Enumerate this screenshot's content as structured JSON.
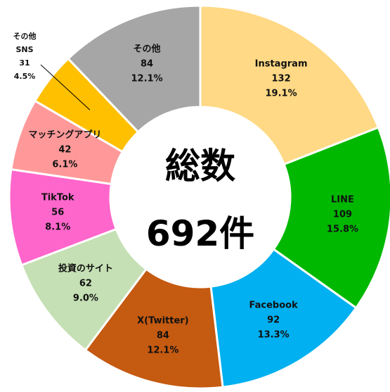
{
  "chart_data": {
    "type": "donut",
    "categories": [
      "Instagram",
      "LINE",
      "Facebook",
      "X(Twitter)",
      "投資のサイト",
      "TikTok",
      "マッチングアプリ",
      "その他\nSNS",
      "その他"
    ],
    "values": [
      132,
      109,
      92,
      84,
      62,
      56,
      42,
      31,
      84
    ],
    "percent_labels": [
      "19.1%",
      "15.8%",
      "13.3%",
      "12.1%",
      "9.0%",
      "8.1%",
      "6.1%",
      "4.5%",
      "12.1%"
    ],
    "colors": [
      "#FFD985",
      "#00B800",
      "#00B0F0",
      "#C55A11",
      "#C5E0B4",
      "#FF66CC",
      "#FF9999",
      "#FFC000",
      "#A6A6A6"
    ],
    "center_title": "総数",
    "center_total": "692件"
  }
}
